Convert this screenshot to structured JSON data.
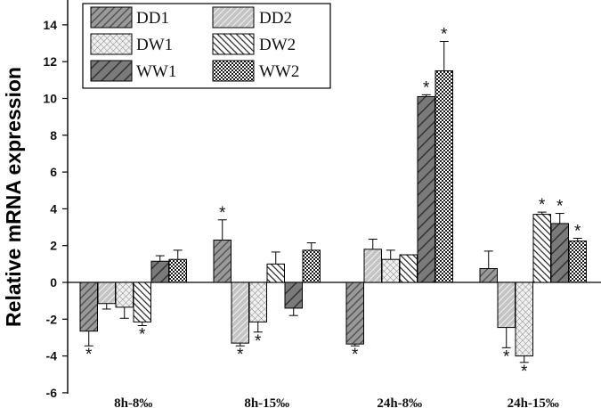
{
  "chart_data": {
    "type": "bar",
    "title": "",
    "xlabel": "",
    "ylabel": "Relative mRNA expression",
    "ylim": [
      -6,
      15
    ],
    "yticks": [
      -6,
      -4,
      -2,
      0,
      2,
      4,
      6,
      8,
      10,
      12,
      14
    ],
    "categories": [
      "8h-8‰",
      "8h-15‰",
      "24h-8‰",
      "24h-15‰"
    ],
    "legend_position": "top-left",
    "series": [
      {
        "name": "DD1",
        "pattern": "diag-dark",
        "values": [
          -2.65,
          2.3,
          -3.35,
          0.75
        ],
        "errors": [
          0.8,
          1.1,
          0.1,
          0.95
        ],
        "significant": [
          true,
          true,
          true,
          false
        ]
      },
      {
        "name": "DD2",
        "pattern": "diag-light",
        "values": [
          -1.15,
          -3.3,
          1.8,
          -2.45
        ],
        "errors": [
          0.3,
          0.15,
          0.55,
          1.1
        ],
        "significant": [
          false,
          true,
          false,
          true
        ]
      },
      {
        "name": "DW1",
        "pattern": "crosshatch",
        "values": [
          -1.35,
          -2.15,
          1.25,
          -4.0
        ],
        "errors": [
          0.6,
          0.55,
          0.5,
          0.35
        ],
        "significant": [
          false,
          true,
          false,
          true
        ]
      },
      {
        "name": "DW2",
        "pattern": "backdiag",
        "values": [
          -2.15,
          1.0,
          1.5,
          3.7
        ],
        "errors": [
          0.2,
          0.65,
          0.0,
          0.12
        ],
        "significant": [
          true,
          false,
          false,
          true
        ]
      },
      {
        "name": "WW1",
        "pattern": "wide-diag",
        "values": [
          1.15,
          -1.4,
          10.1,
          3.2
        ],
        "errors": [
          0.3,
          0.4,
          0.1,
          0.55
        ],
        "significant": [
          false,
          false,
          true,
          true
        ]
      },
      {
        "name": "WW2",
        "pattern": "checker",
        "values": [
          1.25,
          1.75,
          11.5,
          2.25
        ],
        "errors": [
          0.5,
          0.4,
          1.6,
          0.15
        ],
        "significant": [
          false,
          false,
          true,
          true
        ]
      }
    ],
    "significance_mark": "*",
    "grid": false
  }
}
